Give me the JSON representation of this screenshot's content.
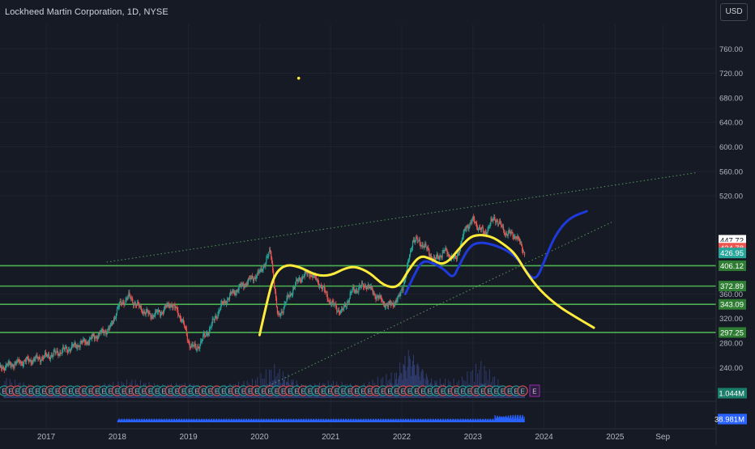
{
  "header": {
    "symbol_title": "Lockheed Martin Corporation, 1D, NYSE",
    "currency_label": "USD"
  },
  "colors": {
    "background": "#161a25",
    "grid": "#1f2330",
    "candle_up": "#26a69a",
    "candle_down": "#ef5350",
    "support_line": "#4caf50",
    "trend_line": "#66bb6a",
    "yellow_path": "#ffeb3b",
    "blue_path": "#1e3adb",
    "volume_bar": "#3b4a8c",
    "lower_volume": "#2962ff",
    "event_marker_border": "#26a69a",
    "event_marker_earnings": "#ef5350"
  },
  "chart_data": {
    "type": "line",
    "title": "Lockheed Martin Corporation, 1D, NYSE",
    "x_axis": {
      "tick_labels": [
        "2017",
        "2018",
        "2019",
        "2020",
        "2021",
        "2022",
        "2023",
        "2024",
        "2025",
        "Sep"
      ],
      "tick_values": [
        2017,
        2018,
        2019,
        2020,
        2021,
        2022,
        2023,
        2024,
        2025,
        2025.67
      ],
      "range": [
        2016.35,
        2026.42
      ]
    },
    "y_axis": {
      "tick_values": [
        240,
        280,
        320,
        360,
        520,
        560,
        600,
        640,
        680,
        720,
        760
      ],
      "tick_labels": [
        "240.00",
        "280.00",
        "320.00",
        "360.00",
        "520.00",
        "560.00",
        "600.00",
        "640.00",
        "680.00",
        "720.00",
        "760.00"
      ],
      "range": [
        185,
        800
      ],
      "hidden_tick_label": "200.00"
    },
    "price_series": {
      "name": "",
      "points": [
        [
          2016.35,
          240
        ],
        [
          2016.6,
          248
        ],
        [
          2016.9,
          255
        ],
        [
          2017.1,
          262
        ],
        [
          2017.4,
          275
        ],
        [
          2017.6,
          285
        ],
        [
          2017.9,
          305
        ],
        [
          2018.0,
          338
        ],
        [
          2018.15,
          356
        ],
        [
          2018.3,
          338
        ],
        [
          2018.45,
          325
        ],
        [
          2018.6,
          330
        ],
        [
          2018.75,
          345
        ],
        [
          2018.9,
          320
        ],
        [
          2019.0,
          280
        ],
        [
          2019.1,
          270
        ],
        [
          2019.3,
          305
        ],
        [
          2019.45,
          340
        ],
        [
          2019.6,
          360
        ],
        [
          2019.8,
          378
        ],
        [
          2020.0,
          395
        ],
        [
          2020.15,
          430
        ],
        [
          2020.25,
          320
        ],
        [
          2020.4,
          355
        ],
        [
          2020.55,
          385
        ],
        [
          2020.7,
          395
        ],
        [
          2020.85,
          375
        ],
        [
          2021.0,
          345
        ],
        [
          2021.15,
          330
        ],
        [
          2021.3,
          365
        ],
        [
          2021.5,
          375
        ],
        [
          2021.65,
          355
        ],
        [
          2021.8,
          340
        ],
        [
          2021.95,
          352
        ],
        [
          2022.05,
          390
        ],
        [
          2022.15,
          450
        ],
        [
          2022.3,
          440
        ],
        [
          2022.45,
          415
        ],
        [
          2022.6,
          430
        ],
        [
          2022.75,
          415
        ],
        [
          2022.9,
          470
        ],
        [
          2023.0,
          480
        ],
        [
          2023.15,
          458
        ],
        [
          2023.3,
          485
        ],
        [
          2023.45,
          460
        ],
        [
          2023.6,
          455
        ],
        [
          2023.72,
          427
        ]
      ]
    },
    "current_price_labels": [
      {
        "price": 447.72,
        "label": "447.72",
        "style": "white"
      },
      {
        "price": 436.81,
        "label": "436.81",
        "style": "white"
      },
      {
        "price": 434.78,
        "label": "434.78",
        "style": "red"
      },
      {
        "price": 426.95,
        "label": "426.95",
        "style": "green"
      }
    ],
    "horizontal_levels": [
      {
        "price": 406.12,
        "label": "406.12"
      },
      {
        "price": 372.89,
        "label": "372.89"
      },
      {
        "price": 343.09,
        "label": "343.09"
      },
      {
        "price": 297.25,
        "label": "297.25"
      }
    ],
    "trend_lines": [
      {
        "name": "upper-channel",
        "from": [
          2017.85,
          412
        ],
        "to": [
          2026.15,
          558
        ]
      },
      {
        "name": "lower-channel",
        "from": [
          2019.85,
          195
        ],
        "to": [
          2024.95,
          477
        ]
      }
    ],
    "drawings": {
      "yellow_path": [
        [
          2020.0,
          293
        ],
        [
          2020.1,
          345
        ],
        [
          2020.2,
          390
        ],
        [
          2020.35,
          408
        ],
        [
          2020.55,
          405
        ],
        [
          2020.8,
          390
        ],
        [
          2021.0,
          390
        ],
        [
          2021.2,
          402
        ],
        [
          2021.35,
          405
        ],
        [
          2021.55,
          395
        ],
        [
          2021.75,
          373
        ],
        [
          2021.95,
          370
        ],
        [
          2022.1,
          400
        ],
        [
          2022.25,
          423
        ],
        [
          2022.4,
          418
        ],
        [
          2022.6,
          405
        ],
        [
          2022.85,
          440
        ],
        [
          2023.0,
          457
        ],
        [
          2023.25,
          455
        ],
        [
          2023.45,
          440
        ],
        [
          2023.6,
          425
        ],
        [
          2023.75,
          395
        ],
        [
          2023.95,
          365
        ],
        [
          2024.2,
          340
        ],
        [
          2024.45,
          322
        ],
        [
          2024.7,
          305
        ]
      ],
      "blue_path": [
        [
          2022.05,
          360
        ],
        [
          2022.2,
          398
        ],
        [
          2022.3,
          415
        ],
        [
          2022.45,
          410
        ],
        [
          2022.6,
          400
        ],
        [
          2022.72,
          385
        ],
        [
          2022.8,
          405
        ],
        [
          2022.95,
          438
        ],
        [
          2023.1,
          445
        ],
        [
          2023.3,
          440
        ],
        [
          2023.5,
          430
        ],
        [
          2023.65,
          415
        ],
        [
          2023.8,
          388
        ],
        [
          2023.9,
          385
        ],
        [
          2024.0,
          412
        ],
        [
          2024.15,
          455
        ],
        [
          2024.35,
          484
        ],
        [
          2024.6,
          495
        ]
      ],
      "marker_dot": [
        2020.55,
        712
      ]
    },
    "volume": {
      "label": "1.044M",
      "bars": [
        [
          2016.4,
          0.35
        ],
        [
          2016.8,
          0.2
        ],
        [
          2017.3,
          0.18
        ],
        [
          2017.8,
          0.25
        ],
        [
          2018.2,
          0.3
        ],
        [
          2018.6,
          0.22
        ],
        [
          2019.0,
          0.28
        ],
        [
          2019.4,
          0.2
        ],
        [
          2019.9,
          0.3
        ],
        [
          2020.2,
          0.55
        ],
        [
          2020.6,
          0.25
        ],
        [
          2021.0,
          0.3
        ],
        [
          2021.4,
          0.2
        ],
        [
          2021.9,
          0.45
        ],
        [
          2022.1,
          0.9
        ],
        [
          2022.4,
          0.35
        ],
        [
          2022.8,
          0.3
        ],
        [
          2023.1,
          0.6
        ],
        [
          2023.4,
          0.25
        ]
      ]
    },
    "lower_pane": {
      "label": "38.981M",
      "x_range": [
        2018.0,
        2023.72
      ]
    },
    "event_markers": {
      "label": "E",
      "start": 2016.35,
      "end": 2023.72,
      "last_highlight": "E"
    },
    "grid": true,
    "legend": "none"
  }
}
